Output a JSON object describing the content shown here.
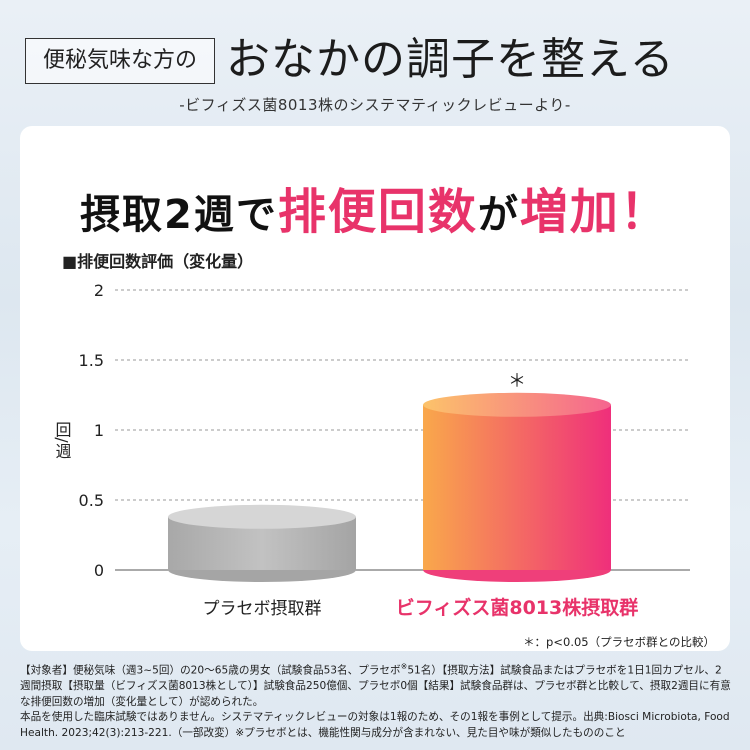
{
  "header": {
    "tag": "便秘気味な方の",
    "headline": "おなかの調子を整える",
    "subhead": "-ビフィズス菌8013株のシステマティックレビューより-"
  },
  "title": {
    "part1": "摂取2週で",
    "part2": "排便回数",
    "part3": "が",
    "part4": "増加！"
  },
  "chart_label": "■排便回数評価（変化量）",
  "chart_data": {
    "type": "bar",
    "categories": [
      "プラセボ摂取群",
      "ビフィズス菌8013株摂取群"
    ],
    "values": [
      0.38,
      1.18
    ],
    "ylabel": "回/週",
    "ylim": [
      0,
      2
    ],
    "yticks": [
      "0",
      "0.5",
      "1",
      "1.5",
      "2"
    ],
    "significance_mark": "＊",
    "grid": true,
    "colors": {
      "placebo": "#b5b5b5",
      "active_top": "#f8a24b",
      "active_bottom": "#ee2f7a",
      "label_active": "#e8336a"
    }
  },
  "significance_note": "＊：p<0.05（プラセボ群との比較）",
  "footnote": {
    "line1": "【対象者】便秘気味（週3~5回）の20～65歳の男女（試験食品53名、プラセボ",
    "line1_mark": "※",
    "line1b": "51名）【摂取方法】試験食品またはプラセボを1日1回カプセル、2週間摂取【摂取量（ビフィズス菌8013株として）】試験食品250億個、プラセボ0個【結果】試験食品群は、プラセボ群と比較して、摂取2週目に有意な排便回数の増加（変化量として）が認められた。",
    "line2": "本品を使用した臨床試験ではありません。システマティックレビューの対象は1報のため、その1報を事例として提示。出典:Biosci Microbiota, Food Health. 2023;42(3):213-221.（一部改変）※プラセボとは、機能性関与成分が含まれない、見た目や味が類似したもののこと"
  }
}
